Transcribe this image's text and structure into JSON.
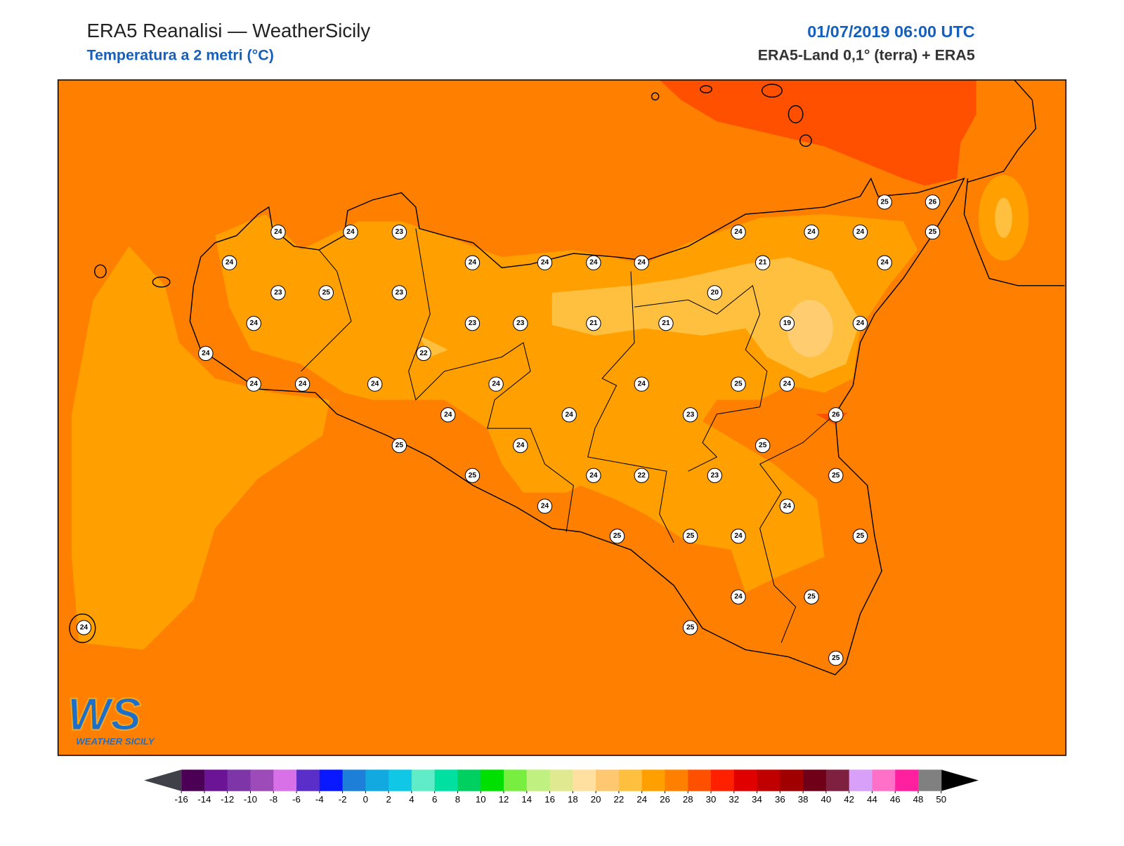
{
  "header": {
    "title": "ERA5 Reanalisi — WeatherSicily",
    "subtitle": "Temperatura a 2 metri (°C)",
    "date": "01/07/2019 06:00 UTC",
    "source": "ERA5-Land 0,1° (terra) + ERA5"
  },
  "stations": [
    24,
    24,
    23,
    24,
    23,
    25,
    23,
    24,
    24,
    24,
    24,
    24,
    23,
    23,
    21,
    21,
    20,
    21,
    24,
    24,
    24,
    25,
    26,
    25,
    24,
    19,
    24,
    24,
    22,
    24,
    24,
    24,
    24,
    24,
    25,
    24,
    24,
    24,
    23,
    26,
    25,
    24,
    25,
    25,
    24,
    22,
    23,
    25,
    24,
    24,
    25,
    25,
    24,
    25,
    24,
    25,
    25,
    25,
    24
  ],
  "colorbar": {
    "ticks": [
      -16,
      -14,
      -12,
      -10,
      -8,
      -6,
      -4,
      -2,
      0,
      2,
      4,
      6,
      8,
      10,
      12,
      14,
      16,
      18,
      20,
      22,
      24,
      26,
      28,
      30,
      32,
      34,
      36,
      38,
      40,
      42,
      44,
      46,
      48,
      50
    ],
    "colors": [
      "#4b0055",
      "#6b1596",
      "#7d35a8",
      "#9c4bb8",
      "#d870e8",
      "#5a2ec8",
      "#0a18ff",
      "#1e7fd8",
      "#12a8e0",
      "#10c8e6",
      "#60ecc8",
      "#00e0a0",
      "#00d060",
      "#00e000",
      "#78ef40",
      "#c0f080",
      "#e0e890",
      "#ffe0a0",
      "#ffc870",
      "#ffc040",
      "#ffa000",
      "#ff8000",
      "#ff5000",
      "#ff2000",
      "#e00000",
      "#c00000",
      "#a00000",
      "#700018",
      "#802040",
      "#d8a0f8",
      "#ff70c8",
      "#ff20a0",
      "#808080",
      "#404040"
    ],
    "under_color": "#404048",
    "over_color": "#000000"
  },
  "logo": {
    "text": "WS",
    "caption": "WEATHER SICILY"
  }
}
